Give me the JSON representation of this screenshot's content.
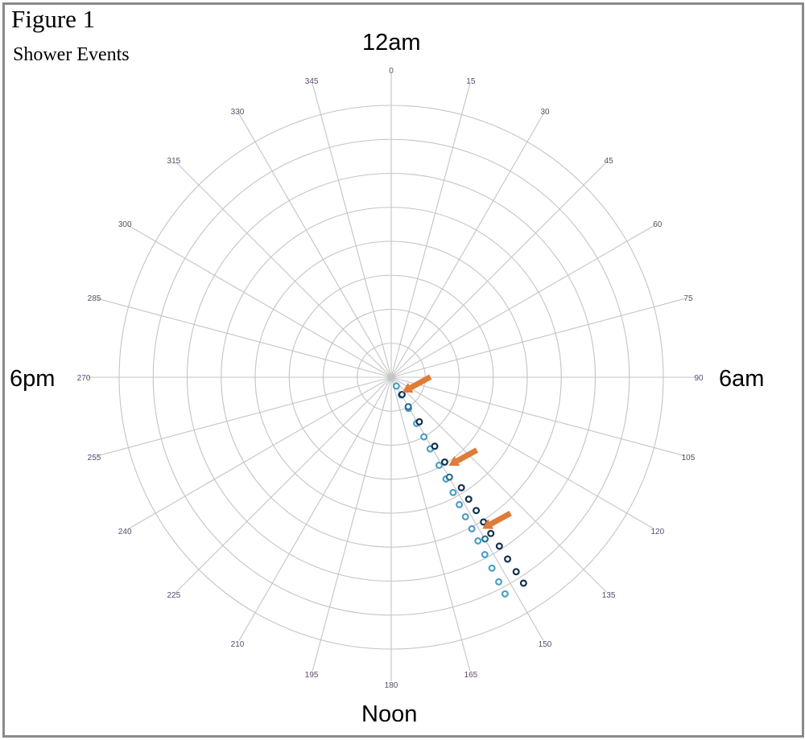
{
  "figure": {
    "title": "Figure 1",
    "subtitle": "Shower Events"
  },
  "direction_labels": {
    "top": "12am",
    "right": "6am",
    "bottom": "Noon",
    "left": "6pm"
  },
  "chart_data": {
    "type": "scatter",
    "coordinate_system": "polar",
    "angle_direction": "clockwise",
    "angle_zero": "top",
    "angular_ticks": [
      "0",
      "15",
      "30",
      "45",
      "60",
      "75",
      "90",
      "105",
      "120",
      "135",
      "150",
      "165",
      "180",
      "195",
      "210",
      "225",
      "240",
      "255",
      "270",
      "285",
      "300",
      "315",
      "330",
      "345"
    ],
    "radial_rings": 8,
    "grid": true,
    "legend": "none",
    "series": [
      {
        "color": "#4a9fc4",
        "points": [
          {
            "theta": 150.0,
            "r": 0.3
          },
          {
            "theta": 150.5,
            "r": 0.6
          },
          {
            "theta": 151.0,
            "r": 1.05
          },
          {
            "theta": 151.2,
            "r": 1.55
          },
          {
            "theta": 151.3,
            "r": 2.0
          },
          {
            "theta": 151.5,
            "r": 2.4
          },
          {
            "theta": 151.5,
            "r": 2.95
          },
          {
            "theta": 151.7,
            "r": 3.4
          },
          {
            "theta": 151.8,
            "r": 3.85
          },
          {
            "theta": 151.9,
            "r": 4.25
          },
          {
            "theta": 152.0,
            "r": 4.65
          },
          {
            "theta": 152.0,
            "r": 5.05
          },
          {
            "theta": 152.1,
            "r": 5.45
          },
          {
            "theta": 152.2,
            "r": 5.9
          },
          {
            "theta": 152.2,
            "r": 6.35
          },
          {
            "theta": 152.3,
            "r": 6.8
          },
          {
            "theta": 152.3,
            "r": 7.2
          }
        ]
      },
      {
        "color": "#12304f",
        "points": [
          {
            "theta": 148.0,
            "r": 0.6
          },
          {
            "theta": 147.8,
            "r": 1.55
          },
          {
            "theta": 147.8,
            "r": 2.4
          },
          {
            "theta": 147.8,
            "r": 2.95
          },
          {
            "theta": 147.6,
            "r": 3.85
          },
          {
            "theta": 147.6,
            "r": 4.25
          },
          {
            "theta": 147.5,
            "r": 4.65
          },
          {
            "theta": 147.5,
            "r": 5.05
          },
          {
            "theta": 147.5,
            "r": 5.45
          },
          {
            "theta": 147.4,
            "r": 5.9
          },
          {
            "theta": 147.4,
            "r": 6.35
          },
          {
            "theta": 147.3,
            "r": 6.8
          },
          {
            "theta": 147.3,
            "r": 7.2
          }
        ]
      },
      {
        "color": "#2b6f95",
        "points": [
          {
            "theta": 150.0,
            "r": 1.0
          },
          {
            "theta": 149.8,
            "r": 3.4
          },
          {
            "theta": 149.9,
            "r": 5.5
          }
        ]
      }
    ],
    "annotations": [
      {
        "type": "arrow",
        "color": "#e07b39",
        "theta": 144.0,
        "r": 0.55
      },
      {
        "type": "arrow",
        "color": "#e07b39",
        "theta": 147.0,
        "r": 3.1
      },
      {
        "type": "arrow",
        "color": "#e07b39",
        "theta": 149.0,
        "r": 5.2
      }
    ]
  }
}
